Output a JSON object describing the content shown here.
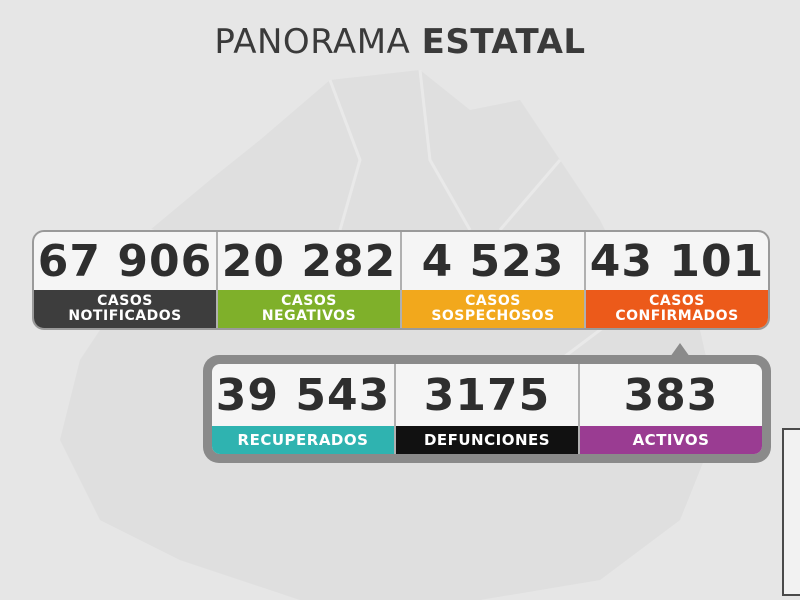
{
  "title": {
    "light": "PANORAMA",
    "bold": "ESTATAL"
  },
  "row1": [
    {
      "value": "67 906",
      "label_line1": "CASOS",
      "label_line2": "NOTIFICADOS",
      "color": "#3d3d3d"
    },
    {
      "value": "20 282",
      "label_line1": "CASOS",
      "label_line2": "NEGATIVOS",
      "color": "#7fb02a"
    },
    {
      "value": "4 523",
      "label_line1": "CASOS",
      "label_line2": "SOSPECHOSOS",
      "color": "#f2a81c"
    },
    {
      "value": "43 101",
      "label_line1": "CASOS",
      "label_line2": "CONFIRMADOS",
      "color": "#ec5a1a"
    }
  ],
  "row2": [
    {
      "value": "39 543",
      "label": "RECUPERADOS",
      "color": "#2fb3b0"
    },
    {
      "value": "3175",
      "label": "DEFUNCIONES",
      "color": "#111111"
    },
    {
      "value": "383",
      "label": "ACTIVOS",
      "color": "#9a3c92"
    }
  ]
}
